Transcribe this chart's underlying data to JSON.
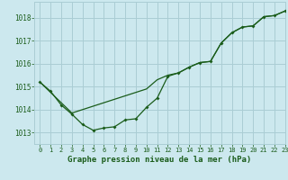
{
  "title": "Graphe pression niveau de la mer (hPa)",
  "background_color": "#cce8ee",
  "grid_color": "#aacdd4",
  "line_color": "#1a5c1a",
  "xlabel": "Graphe pression niveau de la mer (hPa)",
  "xlim": [
    -0.5,
    23
  ],
  "ylim": [
    1012.5,
    1018.7
  ],
  "yticks": [
    1013,
    1014,
    1015,
    1016,
    1017,
    1018
  ],
  "xticks": [
    0,
    1,
    2,
    3,
    4,
    5,
    6,
    7,
    8,
    9,
    10,
    11,
    12,
    13,
    14,
    15,
    16,
    17,
    18,
    19,
    20,
    21,
    22,
    23
  ],
  "line1_x": [
    0,
    1,
    2,
    3,
    4,
    5,
    6,
    7,
    8,
    9,
    10,
    11,
    12,
    13,
    14,
    15,
    16,
    17,
    18,
    19,
    20,
    21,
    22,
    23
  ],
  "line1_y": [
    1015.2,
    1014.8,
    1014.2,
    1013.8,
    1013.35,
    1013.1,
    1013.2,
    1013.25,
    1013.55,
    1013.6,
    1014.1,
    1014.5,
    1015.45,
    1015.6,
    1015.85,
    1016.05,
    1016.1,
    1016.9,
    1017.35,
    1017.6,
    1017.65,
    1018.05,
    1018.1,
    1018.3
  ],
  "line2_x": [
    0,
    3,
    10,
    11,
    12,
    13,
    14,
    15,
    16,
    17,
    18,
    19,
    20,
    21,
    22,
    23
  ],
  "line2_y": [
    1015.2,
    1013.85,
    1014.9,
    1015.3,
    1015.5,
    1015.6,
    1015.85,
    1016.05,
    1016.1,
    1016.9,
    1017.35,
    1017.6,
    1017.65,
    1018.05,
    1018.1,
    1018.3
  ],
  "font_color": "#1a5c1a",
  "font_size_x": 5.0,
  "font_size_y": 5.5,
  "xlabel_fontsize": 6.5
}
